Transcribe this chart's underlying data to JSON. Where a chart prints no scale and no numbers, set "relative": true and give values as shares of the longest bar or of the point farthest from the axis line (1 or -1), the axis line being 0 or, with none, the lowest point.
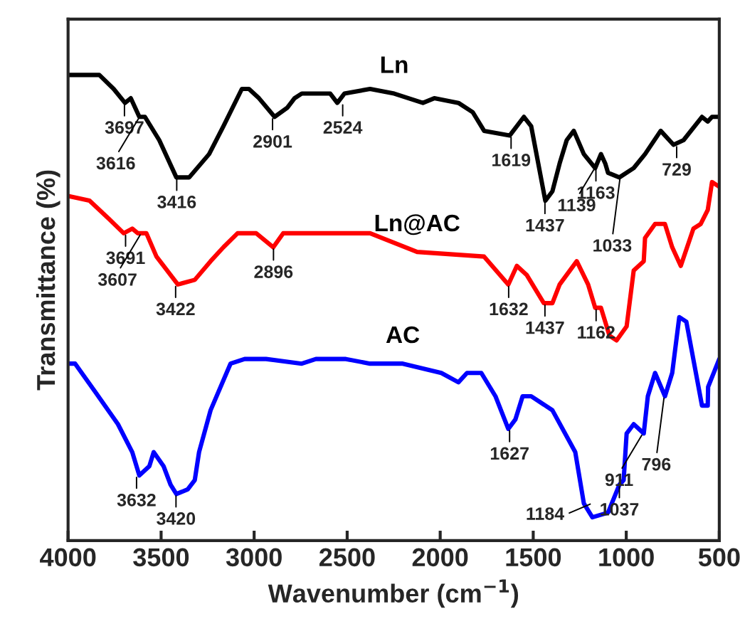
{
  "chart_data": {
    "type": "line",
    "relative": true,
    "xlabel": "Wavenumber (cm$^{−1}$)",
    "ylabel": "Transmittance (%)",
    "xlim": [
      4000,
      500
    ],
    "xticks": [
      4000,
      3500,
      3000,
      2500,
      2000,
      1500,
      1000,
      500
    ],
    "tick_labels": "x",
    "grid": false,
    "legend": false,
    "marker": "none",
    "line_style": "solid",
    "series": [
      {
        "name": "Ln",
        "color": "#000000",
        "x": [
          4000,
          3832,
          3755,
          3694,
          3663,
          3617,
          3587,
          3510,
          3418,
          3349,
          3242,
          3165,
          3066,
          3028,
          2974,
          2890,
          2821,
          2783,
          2744,
          2591,
          2553,
          2515,
          2377,
          2247,
          2093,
          2032,
          1902,
          1825,
          1764,
          1626,
          1550,
          1511,
          1435,
          1397,
          1358,
          1320,
          1282,
          1228,
          1167,
          1136,
          1113,
          1098,
          1037,
          960,
          899,
          815,
          746,
          692,
          593,
          562,
          539,
          500
        ],
        "values": [
          1.0,
          1.0,
          0.97,
          0.94,
          0.95,
          0.91,
          0.91,
          0.86,
          0.78,
          0.78,
          0.83,
          0.89,
          0.97,
          0.97,
          0.95,
          0.91,
          0.93,
          0.95,
          0.96,
          0.96,
          0.94,
          0.96,
          0.97,
          0.96,
          0.94,
          0.95,
          0.94,
          0.92,
          0.88,
          0.87,
          0.91,
          0.89,
          0.73,
          0.75,
          0.81,
          0.86,
          0.88,
          0.83,
          0.8,
          0.83,
          0.81,
          0.79,
          0.78,
          0.8,
          0.83,
          0.88,
          0.85,
          0.86,
          0.91,
          0.9,
          0.91,
          0.91
        ]
      },
      {
        "name": "Ln@AC",
        "color": "#ff0000",
        "x": [
          4000,
          3885,
          3778,
          3701,
          3655,
          3625,
          3579,
          3525,
          3410,
          3319,
          3234,
          3165,
          3089,
          2989,
          2897,
          2844,
          2629,
          2377,
          2124,
          1764,
          1634,
          1588,
          1534,
          1443,
          1397,
          1358,
          1266,
          1205,
          1167,
          1136,
          1090,
          1052,
          998,
          960,
          906,
          899,
          845,
          792,
          753,
          707,
          639,
          600,
          562,
          539,
          500
        ],
        "values": [
          0.74,
          0.73,
          0.69,
          0.66,
          0.67,
          0.66,
          0.66,
          0.61,
          0.55,
          0.56,
          0.6,
          0.63,
          0.66,
          0.66,
          0.63,
          0.66,
          0.66,
          0.66,
          0.62,
          0.61,
          0.55,
          0.59,
          0.57,
          0.51,
          0.51,
          0.55,
          0.6,
          0.55,
          0.5,
          0.5,
          0.44,
          0.43,
          0.46,
          0.58,
          0.6,
          0.65,
          0.68,
          0.68,
          0.63,
          0.59,
          0.67,
          0.68,
          0.71,
          0.77,
          0.76
        ]
      },
      {
        "name": "AC",
        "color": "#0000ff",
        "x": [
          4000,
          3962,
          3855,
          3732,
          3655,
          3617,
          3563,
          3540,
          3487,
          3449,
          3418,
          3357,
          3319,
          3296,
          3234,
          3127,
          3051,
          2936,
          2744,
          2668,
          2507,
          2377,
          2201,
          1994,
          1902,
          1856,
          1779,
          1703,
          1634,
          1596,
          1557,
          1511,
          1397,
          1274,
          1228,
          1182,
          1098,
          1037,
          1014,
          998,
          960,
          906,
          884,
          845,
          792,
          753,
          715,
          677,
          593,
          562,
          560,
          500
        ],
        "values": [
          0.38,
          0.38,
          0.32,
          0.25,
          0.19,
          0.14,
          0.16,
          0.19,
          0.16,
          0.12,
          0.1,
          0.11,
          0.13,
          0.19,
          0.28,
          0.38,
          0.39,
          0.39,
          0.38,
          0.39,
          0.39,
          0.38,
          0.38,
          0.36,
          0.34,
          0.36,
          0.36,
          0.31,
          0.24,
          0.26,
          0.31,
          0.31,
          0.28,
          0.19,
          0.08,
          0.05,
          0.06,
          0.12,
          0.13,
          0.23,
          0.25,
          0.23,
          0.31,
          0.36,
          0.31,
          0.36,
          0.48,
          0.47,
          0.29,
          0.29,
          0.33,
          0.39
        ]
      }
    ],
    "annotations": [
      {
        "text": "3697",
        "x": 3697,
        "y": 0.94
      },
      {
        "text": "3616",
        "x": 3616,
        "y": 0.91
      },
      {
        "text": "3416",
        "x": 3416,
        "y": 0.78
      },
      {
        "text": "2901",
        "x": 2901,
        "y": 0.91
      },
      {
        "text": "2524",
        "x": 2524,
        "y": 0.94
      },
      {
        "text": "1619",
        "x": 1619,
        "y": 0.87
      },
      {
        "text": "1437",
        "x": 1437,
        "y": 0.73
      },
      {
        "text": "1163",
        "x": 1163,
        "y": 0.8
      },
      {
        "text": "1139",
        "x": 1139,
        "y": 0.82
      },
      {
        "text": "1033",
        "x": 1033,
        "y": 0.78
      },
      {
        "text": "729",
        "x": 729,
        "y": 0.85
      },
      {
        "text": "3691",
        "x": 3691,
        "y": 0.66
      },
      {
        "text": "3607",
        "x": 3607,
        "y": 0.66
      },
      {
        "text": "3422",
        "x": 3422,
        "y": 0.55
      },
      {
        "text": "2896",
        "x": 2896,
        "y": 0.63
      },
      {
        "text": "1632",
        "x": 1632,
        "y": 0.55
      },
      {
        "text": "1437",
        "x": 1437,
        "y": 0.51
      },
      {
        "text": "1162",
        "x": 1162,
        "y": 0.5
      },
      {
        "text": "3632",
        "x": 3632,
        "y": 0.14
      },
      {
        "text": "3420",
        "x": 3420,
        "y": 0.1
      },
      {
        "text": "1627",
        "x": 1627,
        "y": 0.24
      },
      {
        "text": "1184",
        "x": 1184,
        "y": 0.08
      },
      {
        "text": "1037",
        "x": 1037,
        "y": 0.12
      },
      {
        "text": "911",
        "x": 911,
        "y": 0.23
      },
      {
        "text": "796",
        "x": 796,
        "y": 0.31
      }
    ]
  }
}
